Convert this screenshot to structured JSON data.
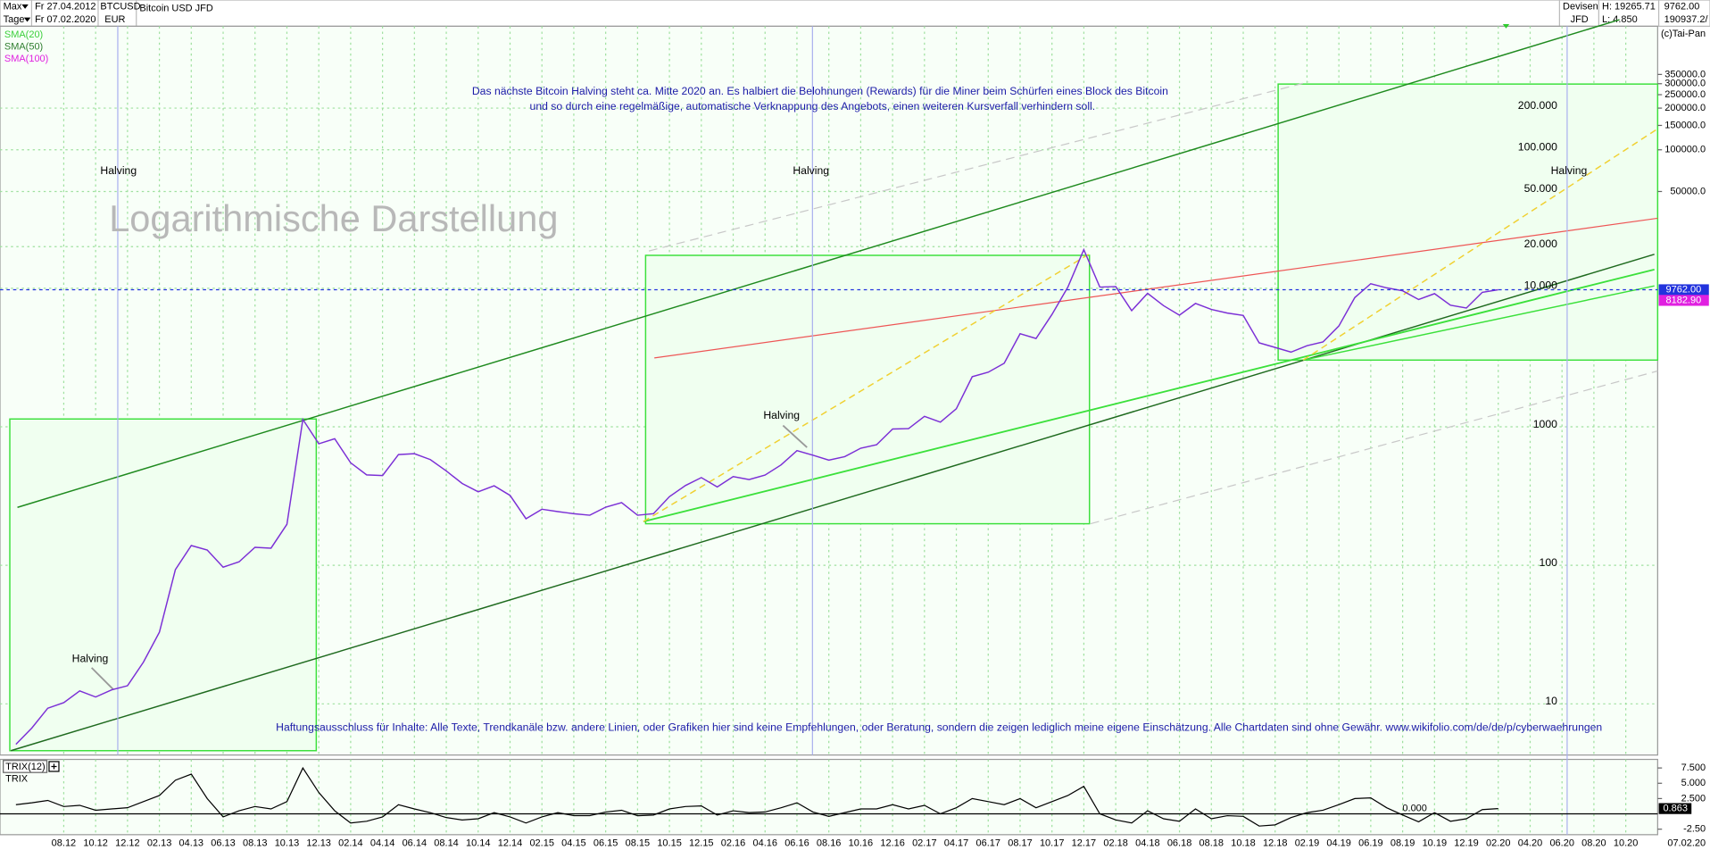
{
  "header": {
    "range": "Max",
    "interval": "Tage",
    "from": "Fr 27.04.2012",
    "to": "Fr 07.02.2020",
    "symbol": "BTCUSD",
    "currency": "EUR",
    "name": "Bitcoin USD JFD",
    "category": "Devisen",
    "exchange": "JFD",
    "high": "H: 19265.71",
    "low": "L: 4.850",
    "last": "9762.00",
    "last2": "190937.2/",
    "copyright": "(c)Tai-Pan"
  },
  "chart_data": {
    "type": "line",
    "color": "#7b2fd6",
    "x": [
      "05.12",
      "06.12",
      "07.12",
      "08.12",
      "09.12",
      "10.12",
      "11.12",
      "12.12",
      "01.13",
      "02.13",
      "03.13",
      "04.13",
      "05.13",
      "06.13",
      "07.13",
      "08.13",
      "09.13",
      "10.13",
      "11.13",
      "12.13",
      "01.14",
      "02.14",
      "03.14",
      "04.14",
      "05.14",
      "06.14",
      "07.14",
      "08.14",
      "09.14",
      "10.14",
      "11.14",
      "12.14",
      "01.15",
      "02.15",
      "03.15",
      "04.15",
      "05.15",
      "06.15",
      "07.15",
      "08.15",
      "09.15",
      "10.15",
      "11.15",
      "12.15",
      "01.16",
      "02.16",
      "03.16",
      "04.16",
      "05.16",
      "06.16",
      "07.16",
      "08.16",
      "09.16",
      "10.16",
      "11.16",
      "12.16",
      "01.17",
      "02.17",
      "03.17",
      "04.17",
      "05.17",
      "06.17",
      "07.17",
      "08.17",
      "09.17",
      "10.17",
      "11.17",
      "12.17",
      "01.18",
      "02.18",
      "03.18",
      "04.18",
      "05.18",
      "06.18",
      "07.18",
      "08.18",
      "09.18",
      "10.18",
      "11.18",
      "12.18",
      "01.19",
      "02.19",
      "03.19",
      "04.19",
      "05.19",
      "06.19",
      "07.19",
      "08.19",
      "09.19",
      "10.19",
      "11.19",
      "12.19",
      "01.20",
      "02.20"
    ],
    "values": [
      5.1,
      6.7,
      9.3,
      10.2,
      12.4,
      11.2,
      12.6,
      13.5,
      20,
      33,
      93,
      139,
      129,
      97,
      106,
      135,
      133,
      198,
      1130,
      754,
      820,
      550,
      450,
      445,
      630,
      640,
      580,
      480,
      390,
      340,
      375,
      320,
      217,
      254,
      244,
      236,
      230,
      263,
      284,
      230,
      236,
      313,
      377,
      430,
      368,
      437,
      416,
      448,
      531,
      673,
      624,
      575,
      609,
      700,
      742,
      963,
      970,
      1190,
      1080,
      1350,
      2300,
      2480,
      2875,
      4700,
      4340,
      6470,
      10200,
      19000,
      10200,
      10300,
      6900,
      9200,
      7500,
      6400,
      7780,
      7030,
      6630,
      6370,
      4040,
      3740,
      3460,
      3850,
      4100,
      5350,
      8570,
      10800,
      10080,
      9600,
      8300,
      9150,
      7550,
      7200,
      9350,
      9762
    ],
    "log_scale": true,
    "grid": true,
    "xlim": [
      "04.12",
      "12.20"
    ],
    "xticks": [
      "08.12",
      "10.12",
      "12.12",
      "02.13",
      "04.13",
      "06.13",
      "08.13",
      "10.13",
      "12.13",
      "02.14",
      "04.14",
      "06.14",
      "08.14",
      "10.14",
      "12.14",
      "02.15",
      "04.15",
      "06.15",
      "08.15",
      "10.15",
      "12.15",
      "02.16",
      "04.16",
      "06.16",
      "08.16",
      "10.16",
      "12.16",
      "02.17",
      "04.17",
      "06.17",
      "08.17",
      "10.17",
      "12.17",
      "02.18",
      "04.18",
      "06.18",
      "08.18",
      "10.18",
      "12.18",
      "02.19",
      "04.19",
      "06.19",
      "08.19",
      "10.19",
      "12.19",
      "02.20",
      "04.20",
      "06.20",
      "08.20",
      "10.20"
    ],
    "current_date": "07.02.20",
    "ylim": [
      4.27,
      780000
    ],
    "yticks": [
      10,
      100,
      1000,
      {
        "value": 10000,
        "label": "10.000"
      },
      {
        "value": 20000,
        "label": "20.000"
      },
      {
        "value": 50000,
        "label": "50.000"
      },
      {
        "value": 100000,
        "label": "100.000"
      },
      {
        "value": 200000,
        "label": "200.000"
      }
    ],
    "right_yticks": [
      {
        "value": 50000,
        "label": "50000.0"
      },
      {
        "value": 100000,
        "label": "100000.0"
      },
      {
        "value": 150000,
        "label": "150000.0"
      },
      {
        "value": 200000,
        "label": "200000.0"
      },
      {
        "value": 250000,
        "label": "250000.0"
      },
      {
        "value": 300000,
        "label": "300000.0"
      },
      {
        "value": 350000,
        "label": "350000.0"
      }
    ],
    "last_price": {
      "value": 9762,
      "label": "9762.00"
    },
    "sma100_last": {
      "value": 8182.9,
      "label": "8182.90"
    },
    "indicators": [
      {
        "name": "SMA(20)",
        "color": "#3ccf3c"
      },
      {
        "name": "SMA(50)",
        "color": "#2e7d2e"
      },
      {
        "name": "SMA(100)",
        "color": "#e020e0"
      }
    ],
    "title_lines": [
      "Das nächste Bitcoin Halving steht ca. Mitte 2020 an. Es halbiert die Belohnungen (Rewards) für die Miner beim Schürfen eines Block des Bitcoin",
      "und so durch eine regelmäßige, automatische Verknappung des Angebots, einen weiteren Kursverfall verhindern soll."
    ],
    "watermark": "Logarithmische Darstellung",
    "disclaimer": "Haftungsausschluss für Inhalte: Alle Texte, Trendkanäle bzw. andere Linien, oder Grafiken hier sind keine Empfehlungen, oder Beratung, sondern die zeigen lediglich meine eigene Einschätzung. Alle Chartdaten sind ohne Gewähr.  www.wikifolio.com/de/de/p/cyberwaehrungen",
    "halving_labels": [
      "Halving",
      "Halving",
      "Halving",
      "Halving",
      "Halving"
    ],
    "trix": {
      "name": "TRIX(12)",
      "label": "TRIX",
      "color": "#000000",
      "values": [
        1.5,
        1.8,
        2.2,
        1.2,
        1.4,
        0.6,
        0.8,
        1.0,
        2.0,
        3.0,
        5.5,
        6.5,
        2.5,
        -0.5,
        0.5,
        1.2,
        0.8,
        2.0,
        7.5,
        3.5,
        0.5,
        -1.5,
        -1.2,
        -0.5,
        1.5,
        0.8,
        0.2,
        -0.6,
        -1.0,
        -0.8,
        0.2,
        -0.5,
        -1.5,
        -0.5,
        0.2,
        -0.3,
        -0.3,
        0.3,
        0.6,
        -0.3,
        -0.2,
        0.8,
        1.2,
        1.3,
        -0.2,
        0.5,
        0.2,
        0.3,
        1.0,
        1.8,
        0.3,
        -0.4,
        0.2,
        0.8,
        0.8,
        1.5,
        0.8,
        1.4,
        0.0,
        1.0,
        2.5,
        2.0,
        1.5,
        2.5,
        1.0,
        2.0,
        3.0,
        4.5,
        0.0,
        -1.0,
        -1.5,
        0.5,
        -0.8,
        -1.2,
        0.8,
        -0.8,
        -0.3,
        -0.4,
        -2.0,
        -1.8,
        -0.6,
        0.2,
        0.6,
        1.5,
        2.5,
        2.6,
        1.0,
        -0.2,
        -1.3,
        0.2,
        -1.2,
        -0.8,
        0.7,
        0.863
      ],
      "ylim": [
        -3.4,
        8.9
      ],
      "yticks": [
        {
          "value": 7.5,
          "label": "7.500"
        },
        {
          "value": 5,
          "label": "5.000"
        },
        {
          "value": 2.5,
          "label": "2.500"
        },
        {
          "value": -2.5,
          "label": "-2.50"
        }
      ],
      "zero_tick": {
        "value": 0,
        "label": "0.000"
      },
      "last": {
        "value": 0.863,
        "label": "0.863"
      }
    }
  }
}
